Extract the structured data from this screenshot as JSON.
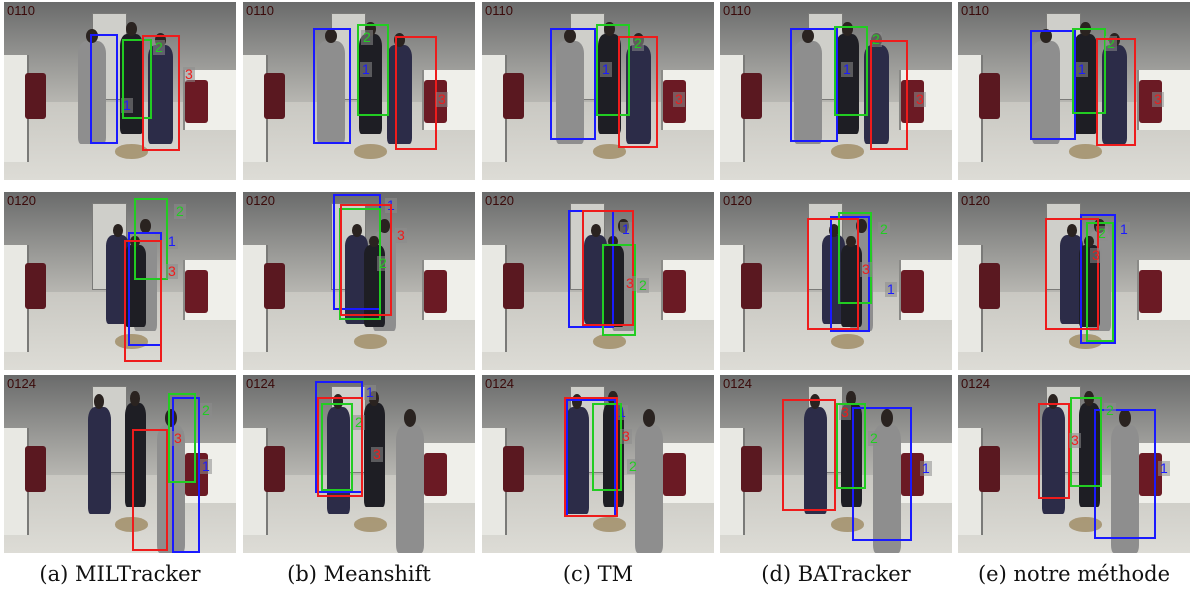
{
  "colors": {
    "id1": "#1a1aff",
    "id2": "#22cc22",
    "id3": "#ee1c1c",
    "sweater": "#8e8e8e",
    "navy": "#2c2c48",
    "dark": "#1e1e24"
  },
  "rows": [
    {
      "frame": "0110"
    },
    {
      "frame": "0120"
    },
    {
      "frame": "0124"
    }
  ],
  "captions": [
    "(a) MILTracker",
    "(b) Meanshift",
    "(c) TM",
    "(d) BATracker",
    "(e) notre méthode"
  ],
  "track_ids": [
    "1",
    "2",
    "3"
  ]
}
